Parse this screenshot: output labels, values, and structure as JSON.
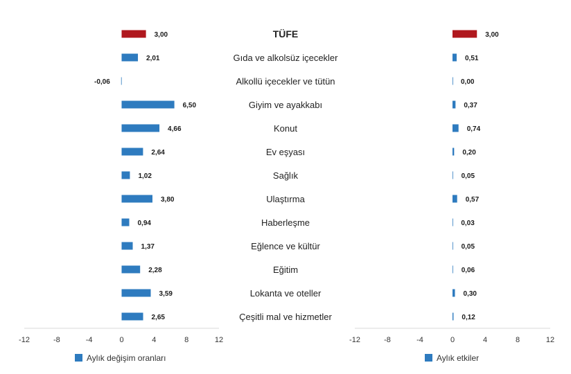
{
  "chart_data": [
    {
      "type": "bar",
      "orientation": "horizontal",
      "legend": "Aylık değişim oranları",
      "legend_position": "bottom-left",
      "xlim": [
        -12,
        12
      ],
      "ticks": [
        "-12",
        "-8",
        "-4",
        "0",
        "4",
        "8",
        "12"
      ],
      "tick_values": [
        -12,
        -8,
        -4,
        0,
        4,
        8,
        12
      ],
      "grid": false,
      "values": [
        3.0,
        2.01,
        -0.06,
        6.5,
        4.66,
        2.64,
        1.02,
        3.8,
        0.94,
        1.37,
        2.28,
        3.59,
        2.65
      ],
      "value_labels": [
        "3,00",
        "2,01",
        "-0,06",
        "6,50",
        "4,66",
        "2,64",
        "1,02",
        "3,80",
        "0,94",
        "1,37",
        "2,28",
        "3,59",
        "2,65"
      ]
    },
    {
      "type": "bar",
      "orientation": "horizontal",
      "legend": "Aylık etkiler",
      "legend_position": "bottom-left",
      "xlim": [
        -12,
        12
      ],
      "ticks": [
        "-12",
        "-8",
        "-4",
        "0",
        "4",
        "8",
        "12"
      ],
      "tick_values": [
        -12,
        -8,
        -4,
        0,
        4,
        8,
        12
      ],
      "grid": false,
      "values": [
        3.0,
        0.51,
        0.0,
        0.37,
        0.74,
        0.2,
        0.05,
        0.57,
        0.03,
        0.05,
        0.06,
        0.3,
        0.12
      ],
      "value_labels": [
        "3,00",
        "0,51",
        "0,00",
        "0,37",
        "0,74",
        "0,20",
        "0,05",
        "0,57",
        "0,03",
        "0,05",
        "0,06",
        "0,30",
        "0,12"
      ]
    }
  ],
  "categories": [
    "TÜFE",
    "Gıda ve alkolsüz içecekler",
    "Alkollü içecekler ve tütün",
    "Giyim ve ayakkabı",
    "Konut",
    "Ev eşyası",
    "Sağlık",
    "Ulaştırma",
    "Haberleşme",
    "Eğlence ve kültür",
    "Eğitim",
    "Lokanta ve oteller",
    "Çeşitli mal ve hizmetler"
  ],
  "colors": {
    "total": "#b0181e",
    "series": "#2e7bbf"
  }
}
